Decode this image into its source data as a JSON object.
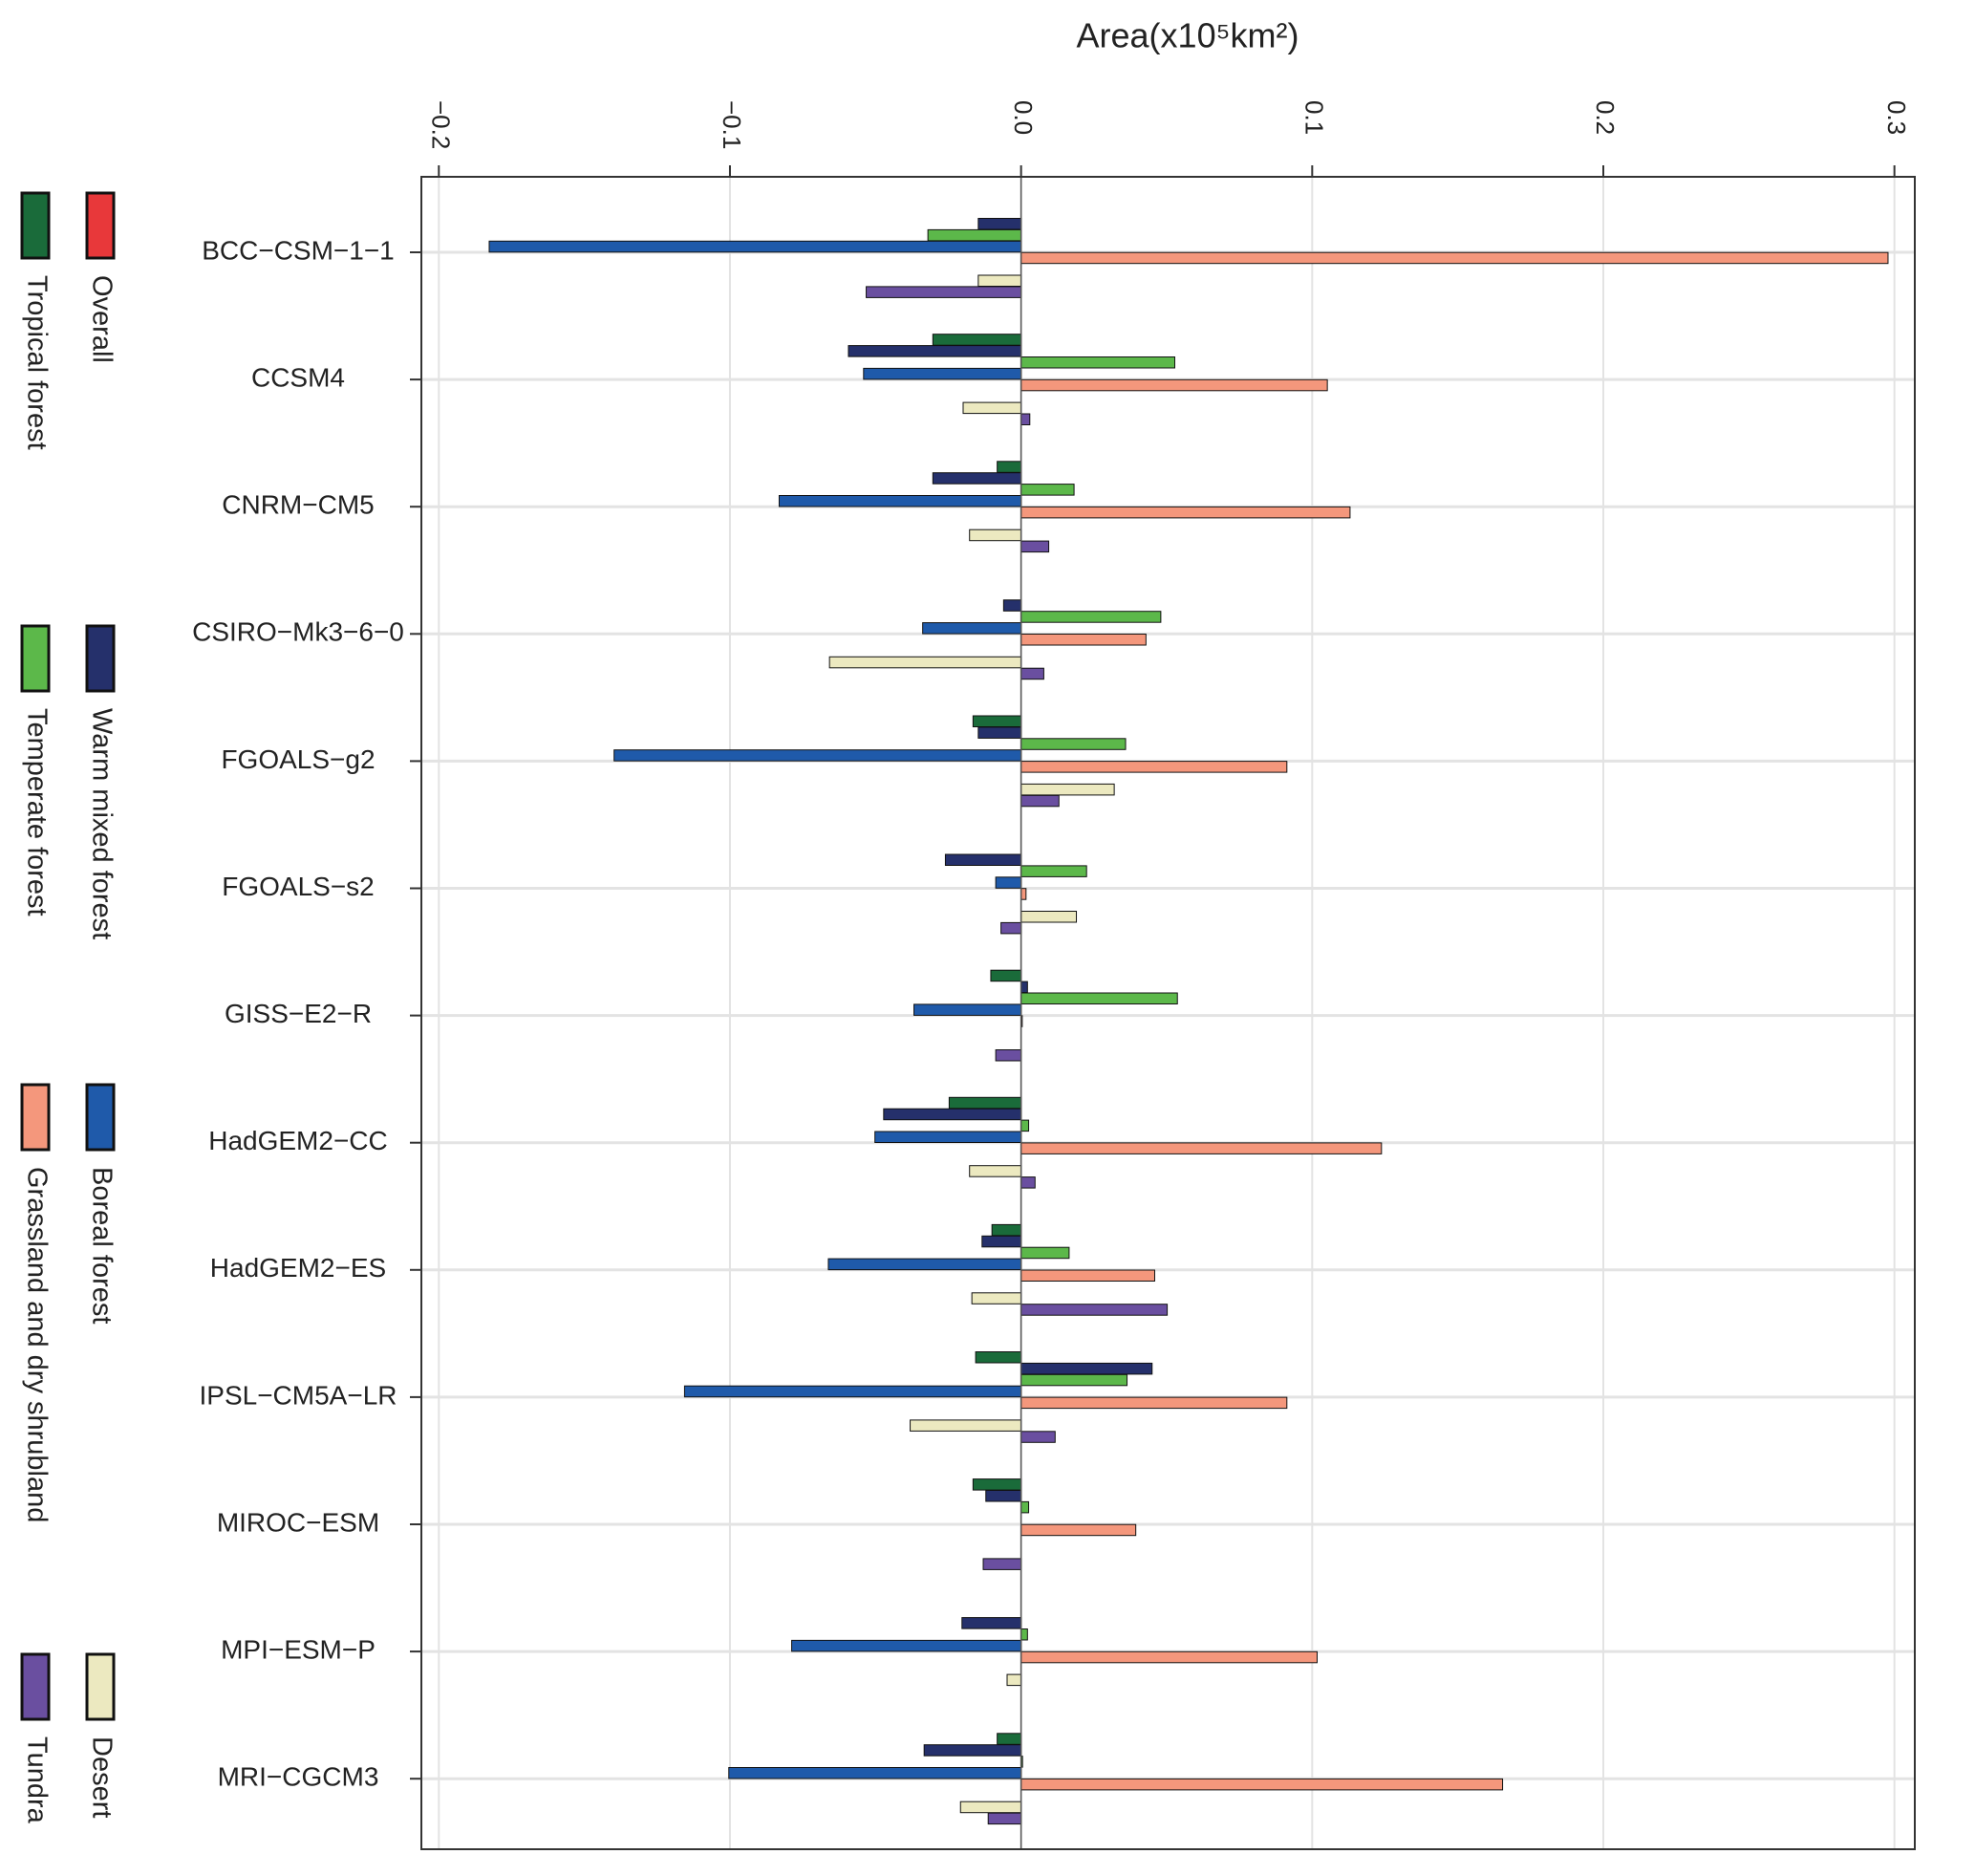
{
  "chart_data": {
    "type": "bar",
    "orientation": "horizontal",
    "x_label": "Area(x10⁵km²)",
    "categories": [
      "BCC−CSM−1−1",
      "CCSM4",
      "CNRM−CM5",
      "CSIRO−Mk3−6−0",
      "FGOALS−g2",
      "FGOALS−s2",
      "GISS−E2−R",
      "HadGEM2−CC",
      "HadGEM2−ES",
      "IPSL−CM5A−LR",
      "MIROC−ESM",
      "MPI−ESM−P",
      "MRI−CGCM3"
    ],
    "series": [
      {
        "name": "Tropical forest",
        "color": "#1a6b3a",
        "values": [
          0,
          -0.0303,
          -0.0082,
          0,
          -0.0165,
          0,
          -0.0104,
          -0.0247,
          -0.01,
          -0.0156,
          -0.0165,
          0,
          -0.0082
        ]
      },
      {
        "name": "Warm mixed forest",
        "color": "#25306b",
        "values": [
          -0.0147,
          -0.0593,
          -0.0303,
          -0.006,
          -0.0147,
          -0.026,
          0.0022,
          -0.0472,
          -0.0134,
          0.045,
          -0.0121,
          -0.0203,
          -0.0333
        ]
      },
      {
        "name": "Temperate forest",
        "color": "#5cb84a",
        "values": [
          -0.032,
          0.0528,
          0.0182,
          0.048,
          0.0359,
          0.0225,
          0.0537,
          0.0026,
          0.0165,
          0.0364,
          0.0026,
          0.0022,
          0.0005
        ]
      },
      {
        "name": "Boreal forest",
        "color": "#1f5aaa",
        "values": [
          -0.1827,
          -0.0541,
          -0.0831,
          -0.0338,
          -0.1398,
          -0.0087,
          -0.0368,
          -0.0502,
          -0.0662,
          -0.1156,
          0,
          -0.0788,
          -0.1004
        ]
      },
      {
        "name": "Grassland and dry shrubland",
        "color": "#f4977c",
        "values": [
          0.2978,
          0.1052,
          0.113,
          0.0429,
          0.0913,
          0.0017,
          0.0004,
          0.1238,
          0.0459,
          0.0913,
          0.0394,
          0.1017,
          0.1654
        ]
      },
      {
        "name": "Overall",
        "color": "#e8383a",
        "values": [
          0,
          0,
          0,
          0,
          0,
          0,
          0,
          0,
          0,
          0,
          0,
          0,
          0
        ]
      },
      {
        "name": "Desert",
        "color": "#ece9c0",
        "values": [
          -0.0147,
          -0.0199,
          -0.0177,
          -0.0658,
          0.032,
          0.019,
          0,
          -0.0177,
          -0.0169,
          -0.0381,
          0,
          -0.0048,
          -0.0208
        ]
      },
      {
        "name": "Tundra",
        "color": "#6a4fa0",
        "values": [
          -0.0532,
          0.003,
          0.0095,
          0.0078,
          0.013,
          -0.0069,
          -0.0087,
          0.0048,
          0.0502,
          0.0117,
          -0.013,
          0,
          -0.0113
        ]
      }
    ],
    "xlim": [
      -0.206,
      0.307
    ],
    "xticks": [
      {
        "value": -0.2,
        "label": "−0.2"
      },
      {
        "value": -0.1,
        "label": "−0.1"
      },
      {
        "value": 0,
        "label": "0.0"
      },
      0.1,
      0.2,
      0.3
    ],
    "grid": true
  }
}
